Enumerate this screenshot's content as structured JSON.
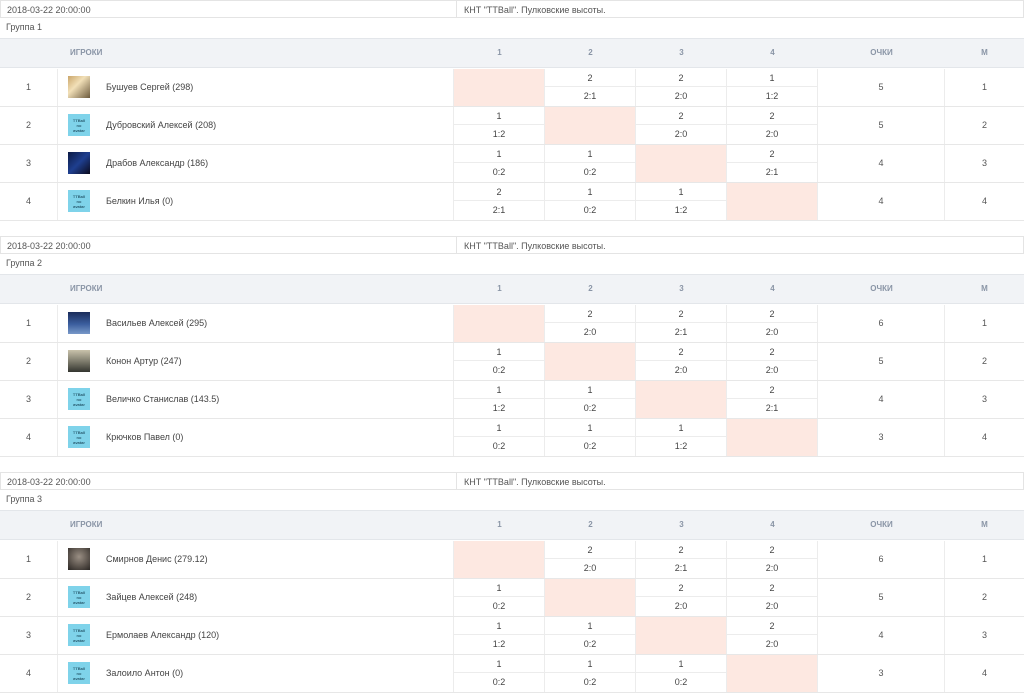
{
  "columns": {
    "players": "ИГРОКИ",
    "c1": "1",
    "c2": "2",
    "c3": "3",
    "c4": "4",
    "points": "ОЧКИ",
    "place": "М"
  },
  "groups": [
    {
      "date": "2018-03-22 20:00:00",
      "venue": "КНТ \"TTBall\". Пулковские высоты.",
      "name": "Группа 1",
      "rows": [
        {
          "num": "1",
          "player": "Бушуев Сергей (298)",
          "avatar": "av-photo",
          "cells": [
            null,
            [
              "2",
              "2:1"
            ],
            [
              "2",
              "2:0"
            ],
            [
              "1",
              "1:2"
            ]
          ],
          "points": "5",
          "place": "1"
        },
        {
          "num": "2",
          "player": "Дубровский Алексей (208)",
          "avatar": "av-none",
          "cells": [
            [
              "1",
              "1:2"
            ],
            null,
            [
              "2",
              "2:0"
            ],
            [
              "2",
              "2:0"
            ]
          ],
          "points": "5",
          "place": "2"
        },
        {
          "num": "3",
          "player": "Драбов Александр (186)",
          "avatar": "av-dark",
          "cells": [
            [
              "1",
              "0:2"
            ],
            [
              "1",
              "0:2"
            ],
            null,
            [
              "2",
              "2:1"
            ]
          ],
          "points": "4",
          "place": "3"
        },
        {
          "num": "4",
          "player": "Белкин Илья (0)",
          "avatar": "av-none",
          "cells": [
            [
              "2",
              "2:1"
            ],
            [
              "1",
              "0:2"
            ],
            [
              "1",
              "1:2"
            ],
            null
          ],
          "points": "4",
          "place": "4"
        }
      ]
    },
    {
      "date": "2018-03-22 20:00:00",
      "venue": "КНТ \"TTBall\". Пулковские высоты.",
      "name": "Группа 2",
      "rows": [
        {
          "num": "1",
          "player": "Васильев Алексей (295)",
          "avatar": "av-blue",
          "cells": [
            null,
            [
              "2",
              "2:0"
            ],
            [
              "2",
              "2:1"
            ],
            [
              "2",
              "2:0"
            ]
          ],
          "points": "6",
          "place": "1"
        },
        {
          "num": "2",
          "player": "Конон Артур (247)",
          "avatar": "av-road",
          "cells": [
            [
              "1",
              "0:2"
            ],
            null,
            [
              "2",
              "2:0"
            ],
            [
              "2",
              "2:0"
            ]
          ],
          "points": "5",
          "place": "2"
        },
        {
          "num": "3",
          "player": "Величко Станислав (143.5)",
          "avatar": "av-none",
          "cells": [
            [
              "1",
              "1:2"
            ],
            [
              "1",
              "0:2"
            ],
            null,
            [
              "2",
              "2:1"
            ]
          ],
          "points": "4",
          "place": "3"
        },
        {
          "num": "4",
          "player": "Крючков Павел (0)",
          "avatar": "av-none",
          "cells": [
            [
              "1",
              "0:2"
            ],
            [
              "1",
              "0:2"
            ],
            [
              "1",
              "1:2"
            ],
            null
          ],
          "points": "3",
          "place": "4"
        }
      ]
    },
    {
      "date": "2018-03-22 20:00:00",
      "venue": "КНТ \"TTBall\". Пулковские высоты.",
      "name": "Группа 3",
      "rows": [
        {
          "num": "1",
          "player": "Смирнов Денис (279.12)",
          "avatar": "av-face",
          "cells": [
            null,
            [
              "2",
              "2:0"
            ],
            [
              "2",
              "2:1"
            ],
            [
              "2",
              "2:0"
            ]
          ],
          "points": "6",
          "place": "1"
        },
        {
          "num": "2",
          "player": "Зайцев Алексей (248)",
          "avatar": "av-none",
          "cells": [
            [
              "1",
              "0:2"
            ],
            null,
            [
              "2",
              "2:0"
            ],
            [
              "2",
              "2:0"
            ]
          ],
          "points": "5",
          "place": "2"
        },
        {
          "num": "3",
          "player": "Ермолаев Александр (120)",
          "avatar": "av-none",
          "cells": [
            [
              "1",
              "1:2"
            ],
            [
              "1",
              "0:2"
            ],
            null,
            [
              "2",
              "2:0"
            ]
          ],
          "points": "4",
          "place": "3"
        },
        {
          "num": "4",
          "player": "Залоило Антон (0)",
          "avatar": "av-none",
          "cells": [
            [
              "1",
              "0:2"
            ],
            [
              "1",
              "0:2"
            ],
            [
              "1",
              "0:2"
            ],
            null
          ],
          "points": "3",
          "place": "4"
        }
      ]
    }
  ]
}
